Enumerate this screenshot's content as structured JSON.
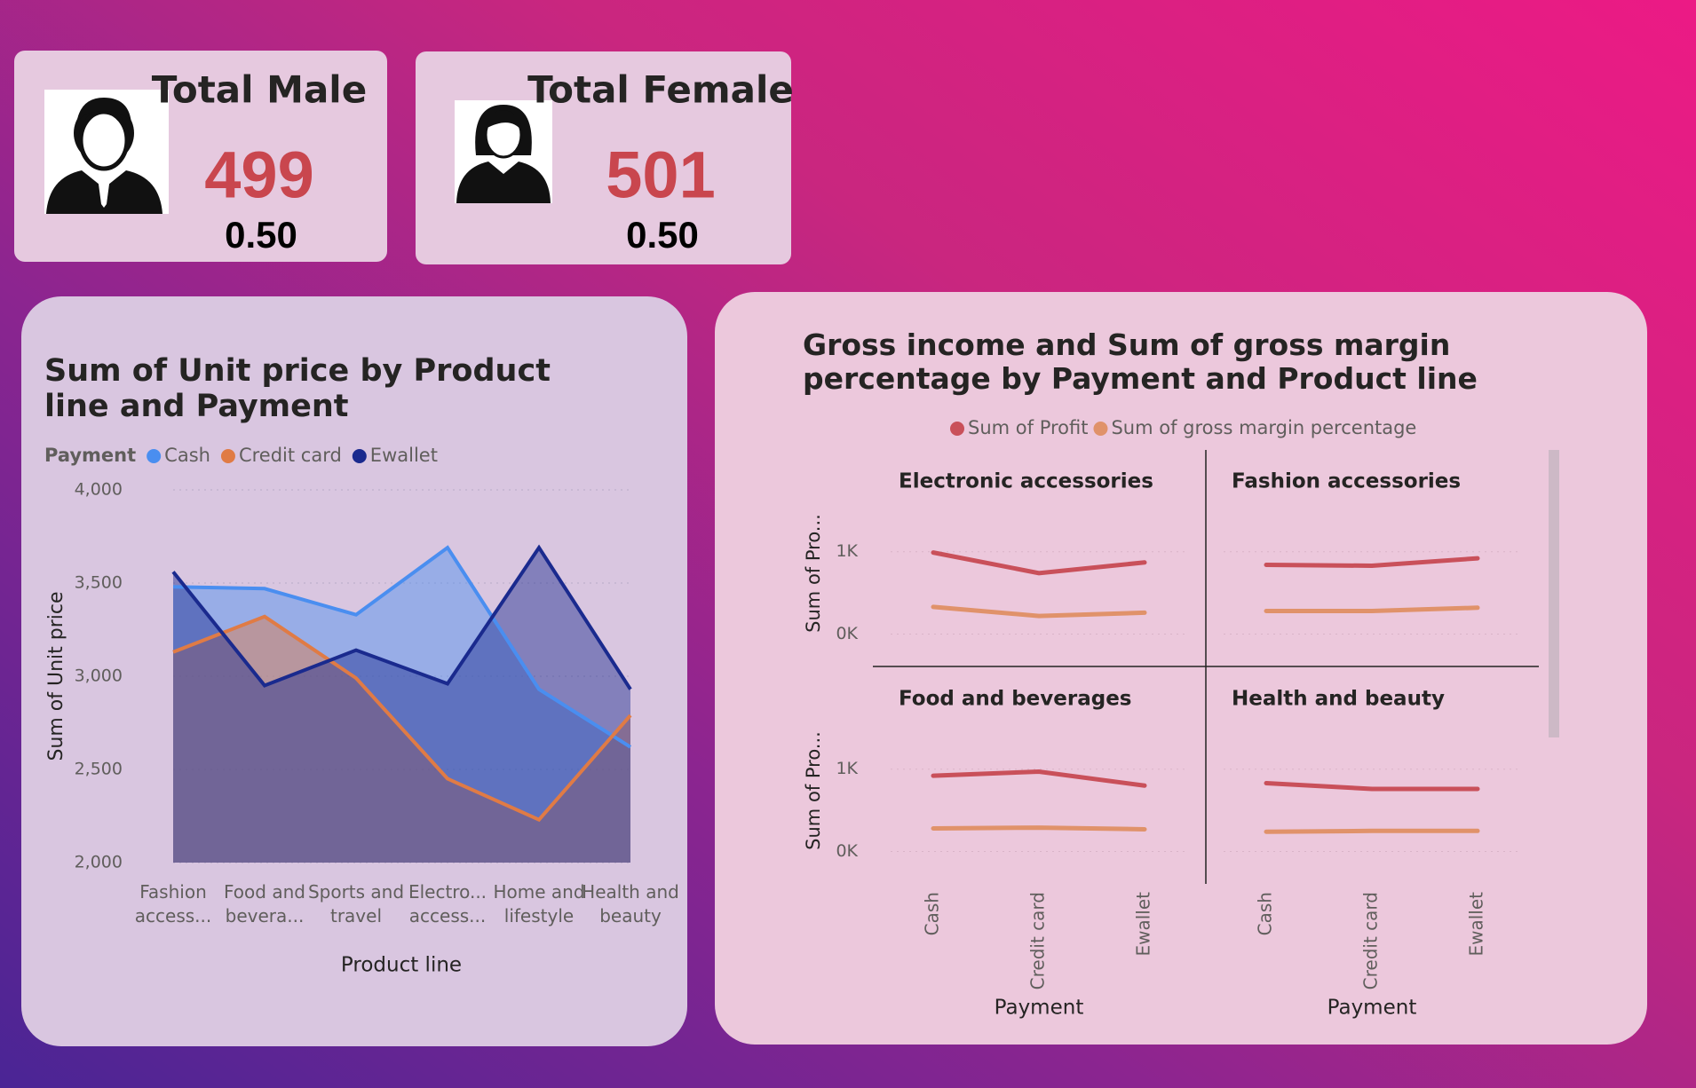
{
  "cards": [
    {
      "title": "Total Male",
      "value": 499,
      "ratio": "0.50"
    },
    {
      "title": "Total Female",
      "value": 501,
      "ratio": "0.50"
    }
  ],
  "chart_data": [
    {
      "type": "area",
      "title": "Sum of Unit price by Product line and Payment",
      "legend_title": "Payment",
      "x_label": "Product line",
      "y_label": "Sum of Unit price",
      "categories": [
        "Fashion access...",
        "Food and bevera...",
        "Sports and travel",
        "Electro... access...",
        "Home and lifestyle",
        "Health and beauty"
      ],
      "series": [
        {
          "name": "Cash",
          "color": "#4a8ef0",
          "values": [
            3480,
            3470,
            3330,
            3690,
            2930,
            2620
          ]
        },
        {
          "name": "Credit card",
          "color": "#e07b45",
          "values": [
            3130,
            3320,
            2990,
            2450,
            2230,
            2790
          ]
        },
        {
          "name": "Ewallet",
          "color": "#1a2a8e",
          "values": [
            3560,
            2950,
            3140,
            2960,
            3690,
            2930
          ]
        }
      ],
      "ylim": [
        2000,
        4000
      ],
      "yticks": [
        {
          "value": 2000,
          "label": "2,000"
        },
        {
          "value": 2500,
          "label": "2,500"
        },
        {
          "value": 3000,
          "label": "3,000"
        },
        {
          "value": 3500,
          "label": "3,500"
        },
        {
          "value": 4000,
          "label": "4,000"
        }
      ],
      "grid": true
    },
    {
      "type": "line",
      "title": "Gross income and Sum of gross margin percentage by Payment and Product line",
      "x_label": "Payment",
      "y_label": "Sum of Pro...",
      "categories": [
        "Cash",
        "Credit card",
        "Ewallet"
      ],
      "series": [
        {
          "name": "Sum of Profit",
          "color": "#c9505a"
        },
        {
          "name": "Sum of gross margin percentage",
          "color": "#e0926a"
        }
      ],
      "panels": [
        {
          "name": "Electronic accessories",
          "series": [
            {
              "values": [
                990,
                740,
                870
              ]
            },
            {
              "values": [
                330,
                220,
                260
              ]
            }
          ]
        },
        {
          "name": "Fashion accessories",
          "series": [
            {
              "values": [
                840,
                830,
                920
              ]
            },
            {
              "values": [
                280,
                280,
                320
              ]
            }
          ]
        },
        {
          "name": "Food and beverages",
          "series": [
            {
              "values": [
                920,
                970,
                800
              ]
            },
            {
              "values": [
                280,
                290,
                270
              ]
            }
          ]
        },
        {
          "name": "Health and beauty",
          "series": [
            {
              "values": [
                830,
                760,
                760
              ]
            },
            {
              "values": [
                240,
                250,
                250
              ]
            }
          ]
        }
      ],
      "ylim": [
        -350,
        1600
      ],
      "yticks": [
        {
          "value": 0,
          "label": "0K"
        },
        {
          "value": 1000,
          "label": "1K"
        }
      ],
      "grid": true
    }
  ]
}
